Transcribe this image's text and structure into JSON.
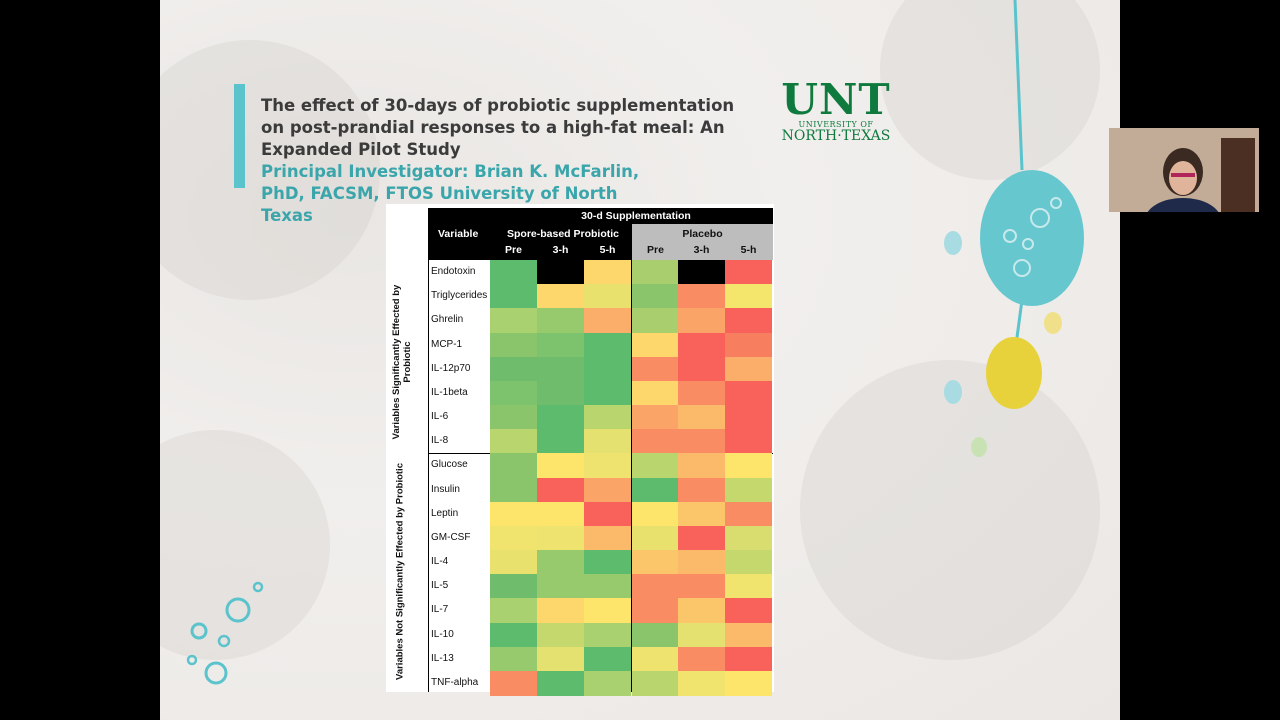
{
  "slide": {
    "title": "The effect of 30-days of probiotic supplementation on post-prandial responses to a high-fat meal: An Expanded Pilot Study",
    "pi": "Principal Investigator: Brian K. McFarlin, PhD, FACSM,  FTOS University of North Texas",
    "logo": {
      "big": "UNT",
      "small": "UNIVERSITY OF",
      "name": "NORTH·TEXAS"
    }
  },
  "table": {
    "header_top": "30-d Supplementation",
    "variable_label": "Variable",
    "group1": "Spore-based Probiotic",
    "group2": "Placebo",
    "timepoints": [
      "Pre",
      "3-h",
      "5-h",
      "Pre",
      "3-h",
      "5-h"
    ],
    "section1_label": "Variables Significantly Effected by Probiotic",
    "section2_label": "Variables Not Significantly Effected by Probiotic",
    "rows": [
      {
        "name": "Endotoxin",
        "colors": [
          "#5dbb6e",
          "#000000",
          "#fdd66c",
          "#a8ce6e",
          "#000000",
          "#f8625a"
        ]
      },
      {
        "name": "Triglycerides",
        "colors": [
          "#5dbb6e",
          "#fdd66c",
          "#e8e16e",
          "#8ac56c",
          "#f98c62",
          "#f4e66c"
        ]
      },
      {
        "name": "Ghrelin",
        "colors": [
          "#a9d16f",
          "#97c96d",
          "#fbae69",
          "#a8ce6e",
          "#fba467",
          "#f8625a"
        ]
      },
      {
        "name": "MCP-1",
        "colors": [
          "#8ac56c",
          "#7dc26c",
          "#5dbb6e",
          "#fdd66c",
          "#f8625a",
          "#f87e60"
        ]
      },
      {
        "name": "IL-12p70",
        "colors": [
          "#6fbd6c",
          "#6fbd6c",
          "#5dbb6e",
          "#f98c62",
          "#f8625a",
          "#fbae69"
        ]
      },
      {
        "name": "IL-1beta",
        "colors": [
          "#7dc26c",
          "#6fbd6c",
          "#5dbb6e",
          "#fdd66c",
          "#f98c62",
          "#f8625a"
        ]
      },
      {
        "name": "IL-6",
        "colors": [
          "#8ac56c",
          "#5dbb6e",
          "#b8d56e",
          "#fba467",
          "#fbb96a",
          "#f8625a"
        ]
      },
      {
        "name": "IL-8",
        "colors": [
          "#b8d56e",
          "#5dbb6e",
          "#e4e170",
          "#f98c62",
          "#f98c62",
          "#f8625a"
        ]
      },
      {
        "name": "Glucose",
        "colors": [
          "#8ac56c",
          "#fde56c",
          "#eee36e",
          "#b8d56e",
          "#fbb96a",
          "#fde56c"
        ]
      },
      {
        "name": "Insulin",
        "colors": [
          "#8ac56c",
          "#f8625a",
          "#fba467",
          "#5dbb6e",
          "#f98c62",
          "#c5d86e"
        ]
      },
      {
        "name": "Leptin",
        "colors": [
          "#fde56c",
          "#fde56c",
          "#f8625a",
          "#fde56c",
          "#fbc66a",
          "#f98c62"
        ]
      },
      {
        "name": "GM-CSF",
        "colors": [
          "#f0e36e",
          "#eee36e",
          "#fbb96a",
          "#e8e16e",
          "#f8625a",
          "#d9dd6f"
        ]
      },
      {
        "name": "IL-4",
        "colors": [
          "#e8e16e",
          "#97c96d",
          "#5dbb6e",
          "#fbc66a",
          "#fbb96a",
          "#c5d86e"
        ]
      },
      {
        "name": "IL-5",
        "colors": [
          "#6fbd6c",
          "#97c96d",
          "#97c96d",
          "#f98c62",
          "#f98c62",
          "#f0e36e"
        ]
      },
      {
        "name": "IL-7",
        "colors": [
          "#a9d16f",
          "#fdd66c",
          "#fde56c",
          "#f98c62",
          "#fbc66a",
          "#f8625a"
        ]
      },
      {
        "name": "IL-10",
        "colors": [
          "#5dbb6e",
          "#c5d86e",
          "#a9d16f",
          "#8ac56c",
          "#e4e170",
          "#fbb96a"
        ]
      },
      {
        "name": "IL-13",
        "colors": [
          "#97c96d",
          "#e4e170",
          "#5dbb6e",
          "#eee36e",
          "#f98c62",
          "#f8625a"
        ]
      },
      {
        "name": "TNF-alpha",
        "colors": [
          "#f98c62",
          "#5dbb6e",
          "#a9d16f",
          "#b8d56e",
          "#f0e36e",
          "#fde56c"
        ]
      }
    ]
  }
}
